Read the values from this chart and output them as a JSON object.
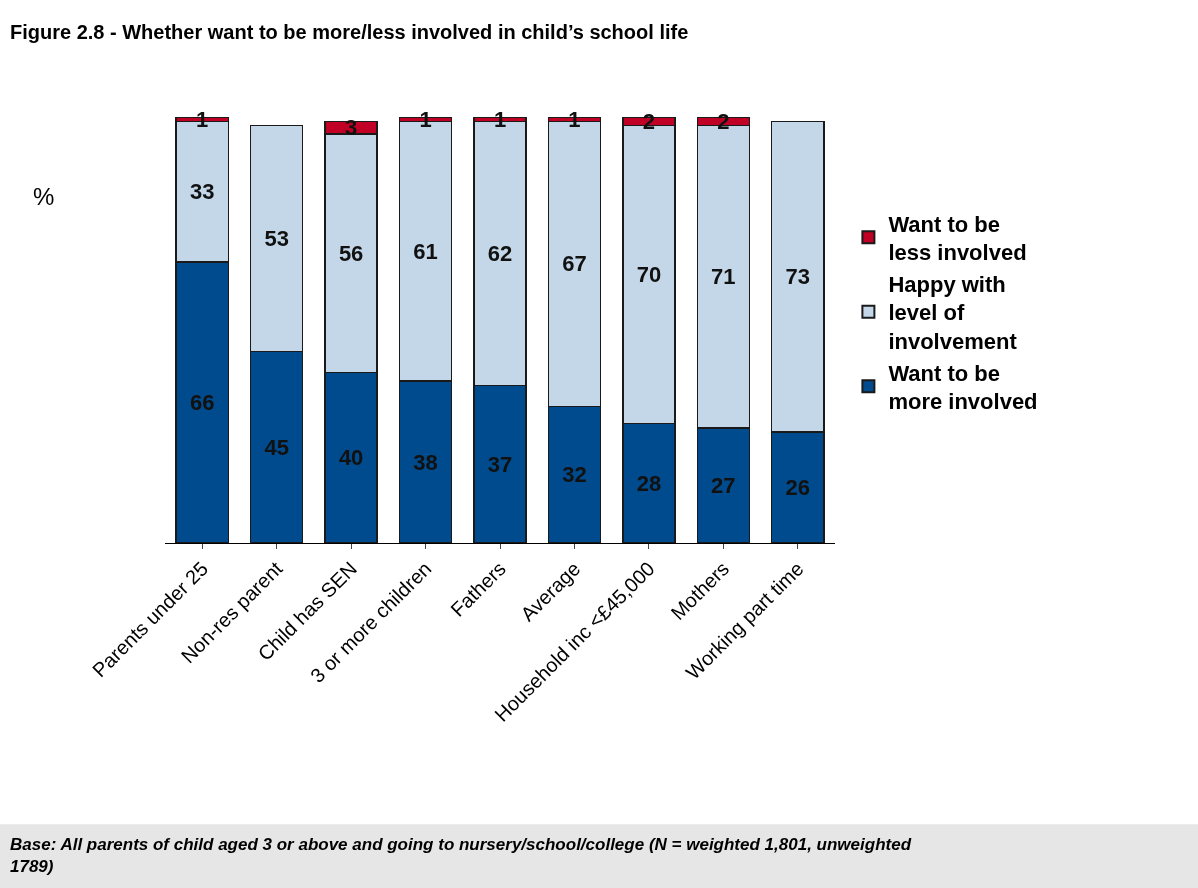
{
  "chart_data": {
    "type": "bar",
    "stacked": true,
    "data_labels": true,
    "legend": "right",
    "title": "Figure 2.8 - Whether want to be more/less involved in child’s school life",
    "ylabel": "%",
    "categories": [
      "Parents under 25",
      "Non-res parent",
      "Child has SEN",
      "3 or more children",
      "Fathers",
      "Average",
      "Household inc <£45,000",
      "Mothers",
      "Working part time"
    ],
    "series": [
      {
        "name": "Want to be more involved",
        "color": "#004b8d",
        "values": [
          66,
          45,
          40,
          38,
          37,
          32,
          28,
          27,
          26
        ]
      },
      {
        "name": "Happy with level of involvement",
        "color": "#c3d7e8",
        "values": [
          33,
          53,
          56,
          61,
          62,
          67,
          70,
          71,
          73
        ]
      },
      {
        "name": "Want to be less involved",
        "color": "#c00024",
        "values": [
          1,
          null,
          3,
          1,
          1,
          1,
          2,
          2,
          null
        ]
      }
    ],
    "annotations": [
      "Base: All parents of child aged 3 or above and going to nursery/school/college (N = weighted 1,801, unweighted 1789)"
    ]
  }
}
